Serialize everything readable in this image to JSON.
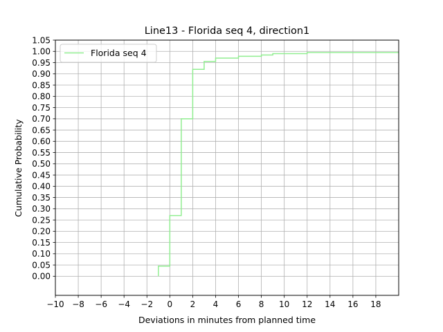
{
  "chart_data": {
    "type": "line",
    "title": "Line13 - Florida seq 4, direction1",
    "xlabel": "Deviations in minutes from planned time",
    "ylabel": "Cumulative Probability",
    "xlim": [
      -10,
      20
    ],
    "ylim": [
      -0.085,
      1.05
    ],
    "x_ticks": [
      -10,
      -8,
      -6,
      -4,
      -2,
      0,
      2,
      4,
      6,
      8,
      10,
      12,
      14,
      16,
      18
    ],
    "x_tick_labels": [
      "−10",
      "−8",
      "−6",
      "−4",
      "−2",
      "0",
      "2",
      "4",
      "6",
      "8",
      "10",
      "12",
      "14",
      "16",
      "18"
    ],
    "y_ticks": [
      0.0,
      0.05,
      0.1,
      0.15,
      0.2,
      0.25,
      0.3,
      0.35,
      0.4,
      0.45,
      0.5,
      0.55,
      0.6,
      0.65,
      0.7,
      0.75,
      0.8,
      0.85,
      0.9,
      0.95,
      1.0,
      1.05
    ],
    "y_tick_labels": [
      "0.00",
      "0.05",
      "0.10",
      "0.15",
      "0.20",
      "0.25",
      "0.30",
      "0.35",
      "0.40",
      "0.45",
      "0.50",
      "0.55",
      "0.60",
      "0.65",
      "0.70",
      "0.75",
      "0.80",
      "0.85",
      "0.90",
      "0.95",
      "1.00",
      "1.05"
    ],
    "grid": true,
    "legend_position": "upper-left",
    "step": "post",
    "series": [
      {
        "name": "Florida seq 4",
        "color": "#90ee90",
        "x": [
          -1,
          -1,
          0,
          0,
          1,
          1,
          2,
          2,
          3,
          3,
          4,
          4,
          6,
          6,
          8,
          8,
          9,
          9,
          12,
          12,
          20
        ],
        "y": [
          0.0,
          0.045,
          0.045,
          0.27,
          0.27,
          0.7,
          0.7,
          0.92,
          0.92,
          0.955,
          0.955,
          0.97,
          0.97,
          0.978,
          0.978,
          0.984,
          0.984,
          0.99,
          0.99,
          0.995,
          0.995
        ]
      }
    ]
  }
}
